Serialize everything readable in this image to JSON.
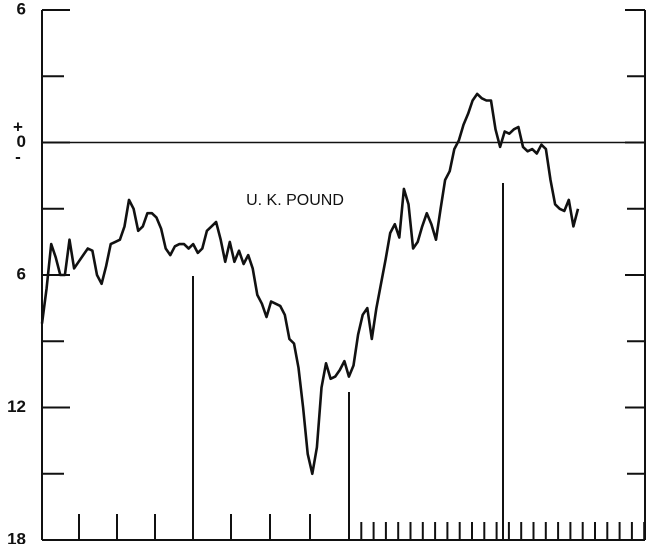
{
  "chart_data": {
    "type": "line",
    "annotation": "U. K. POUND",
    "zero_signs": [
      "+",
      "-"
    ],
    "color": "#111111",
    "ylim": [
      -18,
      6
    ],
    "yticks": [
      6,
      0,
      {
        "value": -6,
        "label": "6"
      },
      {
        "value": -12,
        "label": "12"
      },
      {
        "value": -18,
        "label": "18"
      }
    ],
    "yminor": [
      3,
      -3,
      -9,
      -15
    ],
    "zero_line": true,
    "values": [
      -8.2,
      -6.6,
      -4.6,
      -5.2,
      -6.0,
      -6.0,
      -4.4,
      -5.7,
      -5.4,
      -5.1,
      -4.8,
      -4.9,
      -6.0,
      -6.4,
      -5.6,
      -4.6,
      -4.5,
      -4.4,
      -3.8,
      -2.6,
      -3.0,
      -4.0,
      -3.8,
      -3.2,
      -3.2,
      -3.4,
      -3.9,
      -4.8,
      -5.1,
      -4.7,
      -4.6,
      -4.6,
      -4.8,
      -4.6,
      -5.0,
      -4.8,
      -4.0,
      -3.8,
      -3.6,
      -4.4,
      -5.4,
      -4.5,
      -5.4,
      -4.9,
      -5.5,
      -5.1,
      -5.7,
      -6.9,
      -7.3,
      -7.9,
      -7.2,
      -7.3,
      -7.4,
      -7.8,
      -8.9,
      -9.1,
      -10.2,
      -12.0,
      -14.1,
      -15.0,
      -13.8,
      -11.1,
      -10.0,
      -10.7,
      -10.6,
      -10.3,
      -9.9,
      -10.6,
      -10.1,
      -8.7,
      -7.8,
      -7.5,
      -8.9,
      -7.5,
      -6.4,
      -5.3,
      -4.1,
      -3.7,
      -4.3,
      -2.1,
      -2.8,
      -4.8,
      -4.5,
      -3.8,
      -3.2,
      -3.7,
      -4.4,
      -3.0,
      -1.7,
      -1.3,
      -0.3,
      0.1,
      0.8,
      1.3,
      1.9,
      2.2,
      2.0,
      1.9,
      1.9,
      0.6,
      -0.2,
      0.5,
      0.4,
      0.6,
      0.7,
      -0.2,
      -0.4,
      -0.3,
      -0.5,
      -0.1,
      -0.3,
      -1.7,
      -2.8,
      -3.0,
      -3.1,
      -2.6,
      -3.8,
      -3.0
    ]
  }
}
